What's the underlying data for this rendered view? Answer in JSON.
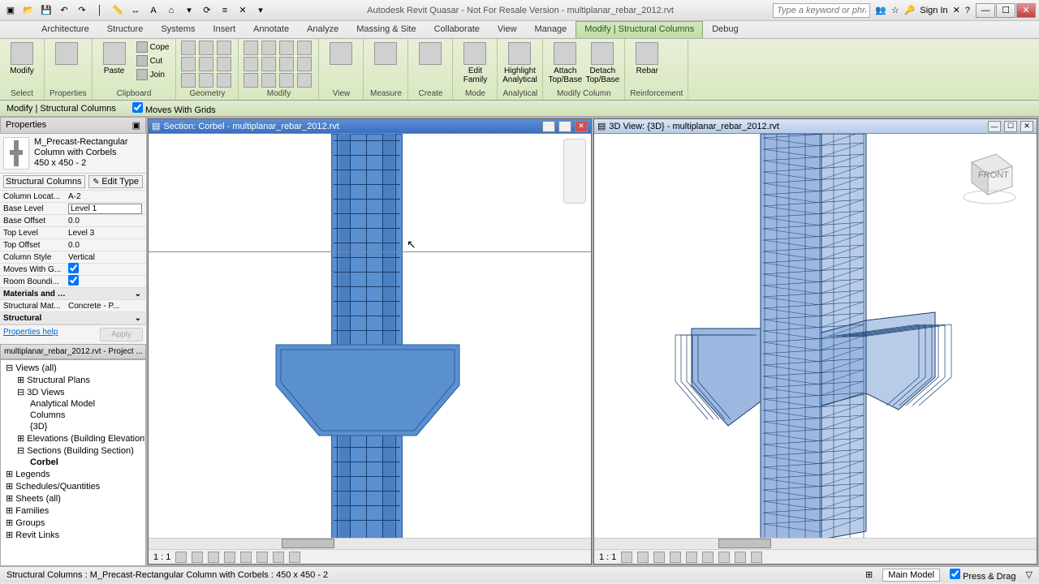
{
  "app": {
    "title": "Autodesk Revit Quasar - Not For Resale Version -    multiplanar_rebar_2012.rvt",
    "search_placeholder": "Type a keyword or phrase",
    "sign_in": "Sign In"
  },
  "tabs": [
    "Architecture",
    "Structure",
    "Systems",
    "Insert",
    "Annotate",
    "Analyze",
    "Massing & Site",
    "Collaborate",
    "View",
    "Manage",
    "Modify | Structural Columns",
    "Debug"
  ],
  "active_tab": 10,
  "ribbon": {
    "panels": [
      {
        "label": "Select",
        "items": [
          {
            "type": "big",
            "label": "Modify"
          }
        ]
      },
      {
        "label": "Properties",
        "items": [
          {
            "type": "big",
            "label": ""
          }
        ]
      },
      {
        "label": "Clipboard",
        "items": [
          {
            "type": "big",
            "label": "Paste"
          },
          {
            "type": "small3",
            "labels": [
              "Cope",
              "Cut",
              "Join"
            ]
          }
        ]
      },
      {
        "label": "Geometry",
        "items": [
          {
            "type": "grid",
            "n": 9
          }
        ]
      },
      {
        "label": "Modify",
        "items": [
          {
            "type": "grid",
            "n": 12
          }
        ]
      },
      {
        "label": "View",
        "items": [
          {
            "type": "big",
            "label": ""
          }
        ]
      },
      {
        "label": "Measure",
        "items": [
          {
            "type": "big",
            "label": ""
          }
        ]
      },
      {
        "label": "Create",
        "items": [
          {
            "type": "big",
            "label": ""
          }
        ]
      },
      {
        "label": "Mode",
        "items": [
          {
            "type": "big",
            "label": "Edit Family"
          }
        ]
      },
      {
        "label": "Analytical",
        "items": [
          {
            "type": "big",
            "label": "Highlight Analytical"
          }
        ]
      },
      {
        "label": "Modify Column",
        "items": [
          {
            "type": "big",
            "label": "Attach Top/Base"
          },
          {
            "type": "big",
            "label": "Detach Top/Base"
          }
        ]
      },
      {
        "label": "Reinforcement",
        "items": [
          {
            "type": "big",
            "label": "Rebar"
          }
        ]
      }
    ]
  },
  "options_bar": {
    "context": "Modify | Structural Columns",
    "checkbox": "Moves With Grids",
    "checked": true
  },
  "properties": {
    "title": "Properties",
    "type_name": "M_Precast-Rectangular Column with Corbels",
    "type_size": "450 x 450 - 2",
    "category": "Structural Columns",
    "edit_type": "Edit Type",
    "rows": [
      {
        "k": "Column Locat...",
        "v": "A-2"
      },
      {
        "k": "Base Level",
        "v": "Level 1",
        "editable": true
      },
      {
        "k": "Base Offset",
        "v": "0.0"
      },
      {
        "k": "Top Level",
        "v": "Level 3"
      },
      {
        "k": "Top Offset",
        "v": "0.0"
      },
      {
        "k": "Column Style",
        "v": "Vertical"
      },
      {
        "k": "Moves With G...",
        "v": "",
        "check": true
      },
      {
        "k": "Room Boundi...",
        "v": "",
        "check": true
      }
    ],
    "group1": "Materials and F...",
    "rows2": [
      {
        "k": "Structural Mat...",
        "v": "Concrete - P..."
      }
    ],
    "group2": "Structural",
    "help": "Properties help",
    "apply": "Apply"
  },
  "browser": {
    "title": "multiplanar_rebar_2012.rvt - Project ...",
    "tree": [
      {
        "l": 0,
        "t": "Views (all)",
        "exp": true
      },
      {
        "l": 1,
        "t": "Structural Plans"
      },
      {
        "l": 1,
        "t": "3D Views",
        "exp": true
      },
      {
        "l": 2,
        "t": "Analytical Model"
      },
      {
        "l": 2,
        "t": "Columns"
      },
      {
        "l": 2,
        "t": "{3D}"
      },
      {
        "l": 1,
        "t": "Elevations (Building Elevation)"
      },
      {
        "l": 1,
        "t": "Sections (Building Section)",
        "exp": true
      },
      {
        "l": 2,
        "t": "Corbel",
        "bold": true
      },
      {
        "l": 0,
        "t": "Legends"
      },
      {
        "l": 0,
        "t": "Schedules/Quantities"
      },
      {
        "l": 0,
        "t": "Sheets (all)"
      },
      {
        "l": 0,
        "t": "Families"
      },
      {
        "l": 0,
        "t": "Groups"
      },
      {
        "l": 0,
        "t": "Revit Links"
      }
    ]
  },
  "view_section": {
    "title": "Section: Corbel - multiplanar_rebar_2012.rvt",
    "scale": "1 : 1",
    "column_color": "#5a8fd0",
    "column_border": "#2a5fa0",
    "rebar_color": "#1a3f70"
  },
  "view_3d": {
    "title": "3D View: {3D} - multiplanar_rebar_2012.rvt",
    "scale": "1 : 1",
    "fill": "#9db8e0",
    "wire": "#1a3f70"
  },
  "status": {
    "selection": "Structural Columns : M_Precast-Rectangular Column with Corbels : 450 x 450 - 2",
    "model": "Main Model",
    "press_drag": "Press & Drag"
  }
}
